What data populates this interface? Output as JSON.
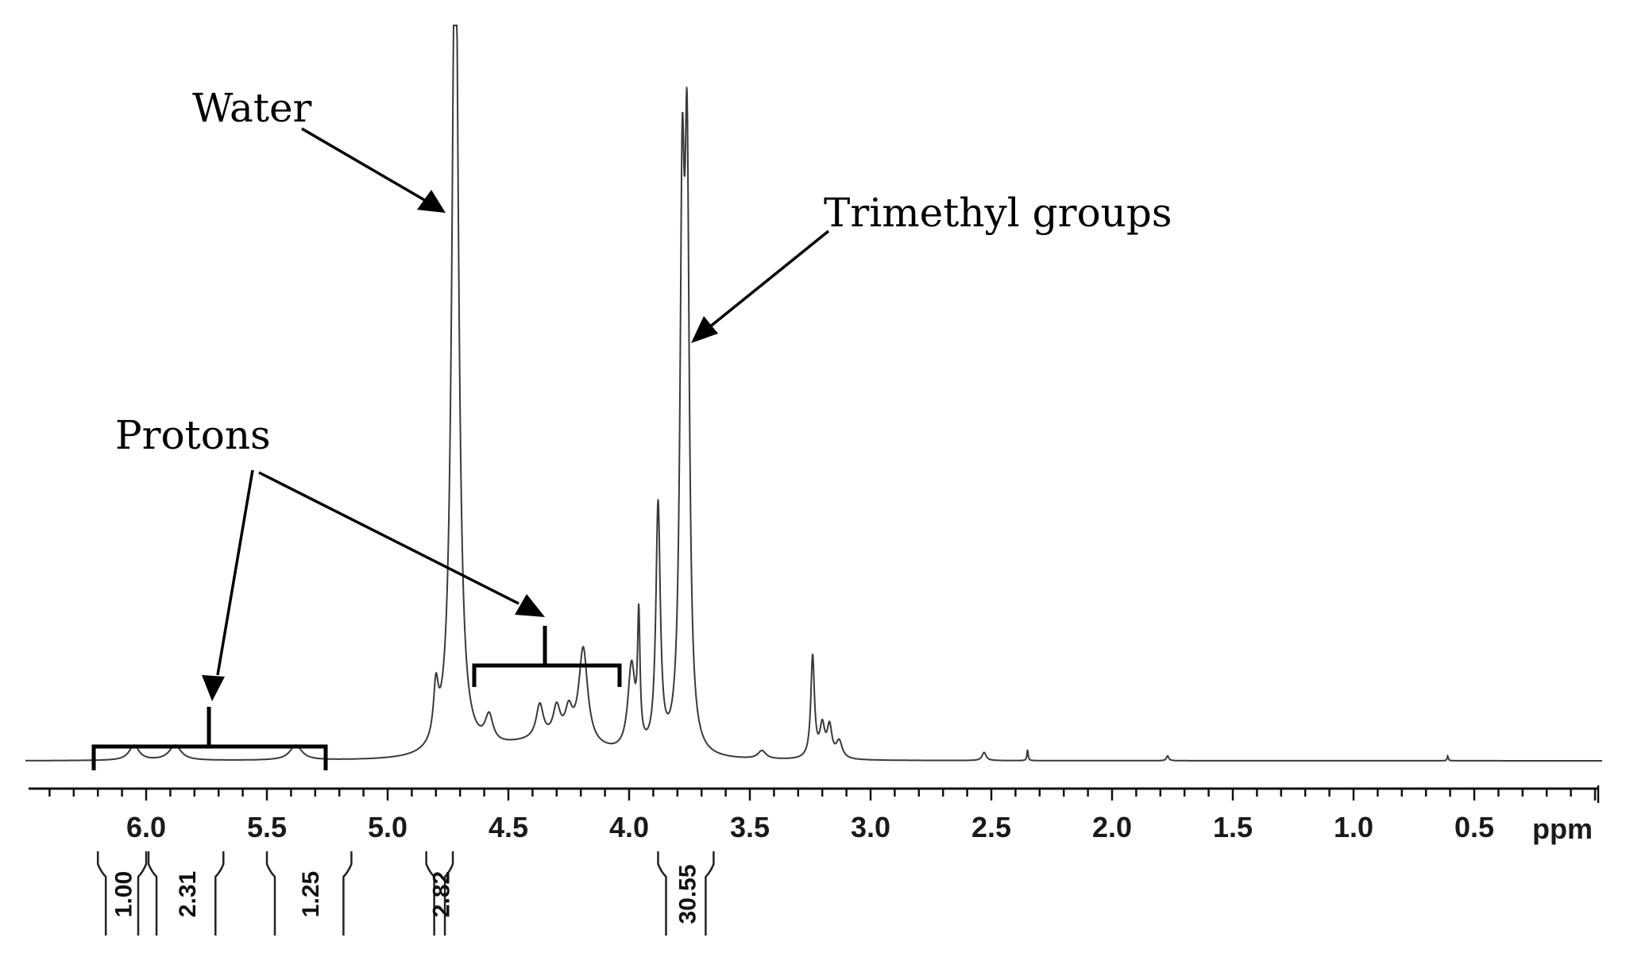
{
  "chart_data": {
    "type": "line",
    "title": "",
    "xlabel": "ppm",
    "ylabel": "",
    "x_reversed": true,
    "xlim": [
      6.55,
      -0.05
    ],
    "ylim": [
      0,
      100
    ],
    "x_ticks": [
      6.0,
      5.5,
      5.0,
      4.5,
      4.0,
      3.5,
      3.0,
      2.5,
      2.0,
      1.5,
      1.0,
      0.5
    ],
    "x_tick_labels": [
      "6.0",
      "5.5",
      "5.0",
      "4.5",
      "4.0",
      "3.5",
      "3.0",
      "2.5",
      "2.0",
      "1.5",
      "1.0",
      "0.5"
    ],
    "grid": false,
    "peaks": [
      {
        "ppm": 6.05,
        "height": 2.2,
        "width": 0.025
      },
      {
        "ppm": 5.88,
        "height": 2.2,
        "width": 0.03
      },
      {
        "ppm": 5.38,
        "height": 2.2,
        "width": 0.03
      },
      {
        "ppm": 4.8,
        "height": 7.5,
        "width": 0.012
      },
      {
        "ppm": 4.72,
        "height": 130,
        "width": 0.016
      },
      {
        "ppm": 4.58,
        "height": 4.0,
        "width": 0.02
      },
      {
        "ppm": 4.37,
        "height": 5.0,
        "width": 0.018
      },
      {
        "ppm": 4.3,
        "height": 4.5,
        "width": 0.018
      },
      {
        "ppm": 4.25,
        "height": 4.0,
        "width": 0.018
      },
      {
        "ppm": 4.19,
        "height": 14.0,
        "width": 0.022
      },
      {
        "ppm": 3.99,
        "height": 12.5,
        "width": 0.018
      },
      {
        "ppm": 3.96,
        "height": 18.0,
        "width": 0.006
      },
      {
        "ppm": 3.88,
        "height": 36.0,
        "width": 0.011
      },
      {
        "ppm": 3.78,
        "height": 75.0,
        "width": 0.011
      },
      {
        "ppm": 3.76,
        "height": 80.0,
        "width": 0.011
      },
      {
        "ppm": 3.45,
        "height": 1.2,
        "width": 0.02
      },
      {
        "ppm": 3.24,
        "height": 15.0,
        "width": 0.009
      },
      {
        "ppm": 3.2,
        "height": 4.5,
        "width": 0.012
      },
      {
        "ppm": 3.17,
        "height": 4.5,
        "width": 0.012
      },
      {
        "ppm": 3.13,
        "height": 2.5,
        "width": 0.015
      },
      {
        "ppm": 2.53,
        "height": 1.2,
        "width": 0.01
      },
      {
        "ppm": 2.35,
        "height": 1.6,
        "width": 0.003
      },
      {
        "ppm": 1.77,
        "height": 0.7,
        "width": 0.006
      },
      {
        "ppm": 0.61,
        "height": 0.7,
        "width": 0.003
      }
    ],
    "integrals": [
      {
        "value": "1.00",
        "from": 6.2,
        "to": 6.0
      },
      {
        "value": "2.31",
        "from": 5.99,
        "to": 5.68
      },
      {
        "value": "1.25",
        "from": 5.5,
        "to": 5.15
      },
      {
        "value": "2.82",
        "from": 4.84,
        "to": 4.73
      },
      {
        "value": "30.55",
        "from": 3.88,
        "to": 3.65
      }
    ]
  },
  "annotations": {
    "water": "Water",
    "trimethyl": "Trimethyl groups",
    "protons": "Protons"
  }
}
